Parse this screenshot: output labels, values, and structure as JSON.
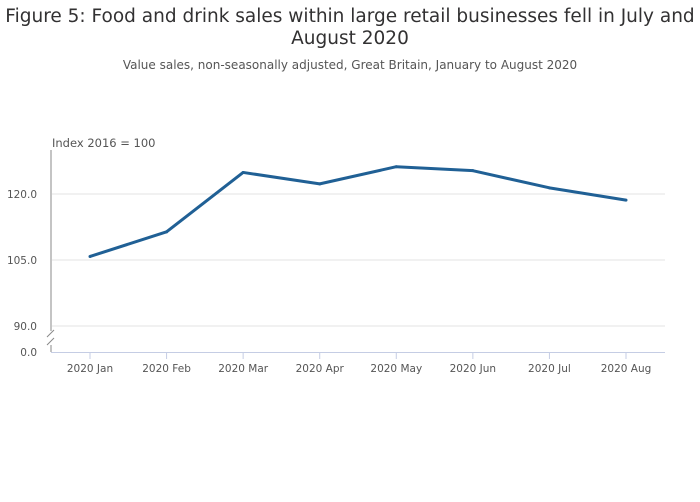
{
  "chart_data": {
    "type": "line",
    "title": "Figure 5: Food and drink sales within large retail businesses fell in July and August 2020",
    "subtitle": "Value sales, non-seasonally adjusted, Great Britain, January to August 2020",
    "ylabel": "Index 2016 = 100",
    "xlabel": "",
    "categories": [
      "2020 Jan",
      "2020 Feb",
      "2020 Mar",
      "2020 Apr",
      "2020 May",
      "2020 Jun",
      "2020 Jul",
      "2020 Aug"
    ],
    "series": [
      {
        "name": "Food and drink sales",
        "color": "#206095",
        "values": [
          105.8,
          111.4,
          124.9,
          122.3,
          126.2,
          125.3,
          121.4,
          118.6
        ]
      }
    ],
    "yticks": [
      {
        "value": 90,
        "label": "90.0"
      },
      {
        "value": 105,
        "label": "105.0"
      },
      {
        "value": 120,
        "label": "120.0"
      }
    ],
    "ybreak_label": "0.0",
    "ylim": [
      90,
      130
    ],
    "grid": true
  }
}
